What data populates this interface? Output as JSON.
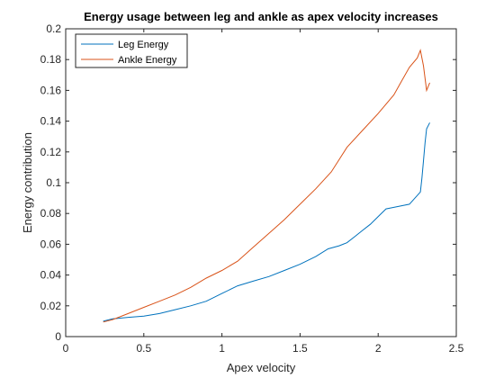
{
  "chart_data": {
    "type": "line",
    "title": "Energy usage between leg and ankle as apex velocity increases",
    "xlabel": "Apex velocity",
    "ylabel": "Energy contribution",
    "xlim": [
      0,
      2.5
    ],
    "ylim": [
      0,
      0.2
    ],
    "xticks": [
      0,
      0.5,
      1,
      1.5,
      2,
      2.5
    ],
    "xtick_labels": [
      "0",
      "0.5",
      "1",
      "1.5",
      "2",
      "2.5"
    ],
    "yticks": [
      0,
      0.02,
      0.04,
      0.06,
      0.08,
      0.1,
      0.12,
      0.14,
      0.16,
      0.18,
      0.2
    ],
    "ytick_labels": [
      "0",
      "0.02",
      "0.04",
      "0.06",
      "0.08",
      "0.1",
      "0.12",
      "0.14",
      "0.16",
      "0.18",
      "0.2"
    ],
    "grid": false,
    "legend_position": "top-left",
    "series": [
      {
        "name": "Leg Energy",
        "color": "#0072BD",
        "points": [
          [
            0.24,
            0.01
          ],
          [
            0.3,
            0.0115
          ],
          [
            0.4,
            0.0125
          ],
          [
            0.5,
            0.0133
          ],
          [
            0.6,
            0.015
          ],
          [
            0.7,
            0.0175
          ],
          [
            0.8,
            0.02
          ],
          [
            0.9,
            0.023
          ],
          [
            1.0,
            0.028
          ],
          [
            1.1,
            0.033
          ],
          [
            1.2,
            0.036
          ],
          [
            1.3,
            0.039
          ],
          [
            1.4,
            0.043
          ],
          [
            1.5,
            0.047
          ],
          [
            1.6,
            0.052
          ],
          [
            1.68,
            0.057
          ],
          [
            1.75,
            0.059
          ],
          [
            1.8,
            0.061
          ],
          [
            1.85,
            0.065
          ],
          [
            1.9,
            0.069
          ],
          [
            1.95,
            0.073
          ],
          [
            2.0,
            0.078
          ],
          [
            2.05,
            0.083
          ],
          [
            2.1,
            0.084
          ],
          [
            2.2,
            0.086
          ],
          [
            2.27,
            0.094
          ],
          [
            2.28,
            0.103
          ],
          [
            2.29,
            0.114
          ],
          [
            2.3,
            0.126
          ],
          [
            2.31,
            0.135
          ],
          [
            2.33,
            0.139
          ]
        ]
      },
      {
        "name": "Ankle Energy",
        "color": "#D95319",
        "points": [
          [
            0.24,
            0.0095
          ],
          [
            0.3,
            0.011
          ],
          [
            0.4,
            0.015
          ],
          [
            0.5,
            0.019
          ],
          [
            0.6,
            0.023
          ],
          [
            0.7,
            0.027
          ],
          [
            0.8,
            0.032
          ],
          [
            0.9,
            0.038
          ],
          [
            1.0,
            0.043
          ],
          [
            1.1,
            0.049
          ],
          [
            1.2,
            0.058
          ],
          [
            1.3,
            0.067
          ],
          [
            1.4,
            0.076
          ],
          [
            1.5,
            0.086
          ],
          [
            1.6,
            0.096
          ],
          [
            1.7,
            0.107
          ],
          [
            1.75,
            0.115
          ],
          [
            1.8,
            0.123
          ],
          [
            1.9,
            0.134
          ],
          [
            2.0,
            0.145
          ],
          [
            2.1,
            0.157
          ],
          [
            2.15,
            0.166
          ],
          [
            2.2,
            0.175
          ],
          [
            2.25,
            0.181
          ],
          [
            2.27,
            0.186
          ],
          [
            2.29,
            0.176
          ],
          [
            2.31,
            0.16
          ],
          [
            2.33,
            0.165
          ]
        ]
      }
    ]
  }
}
